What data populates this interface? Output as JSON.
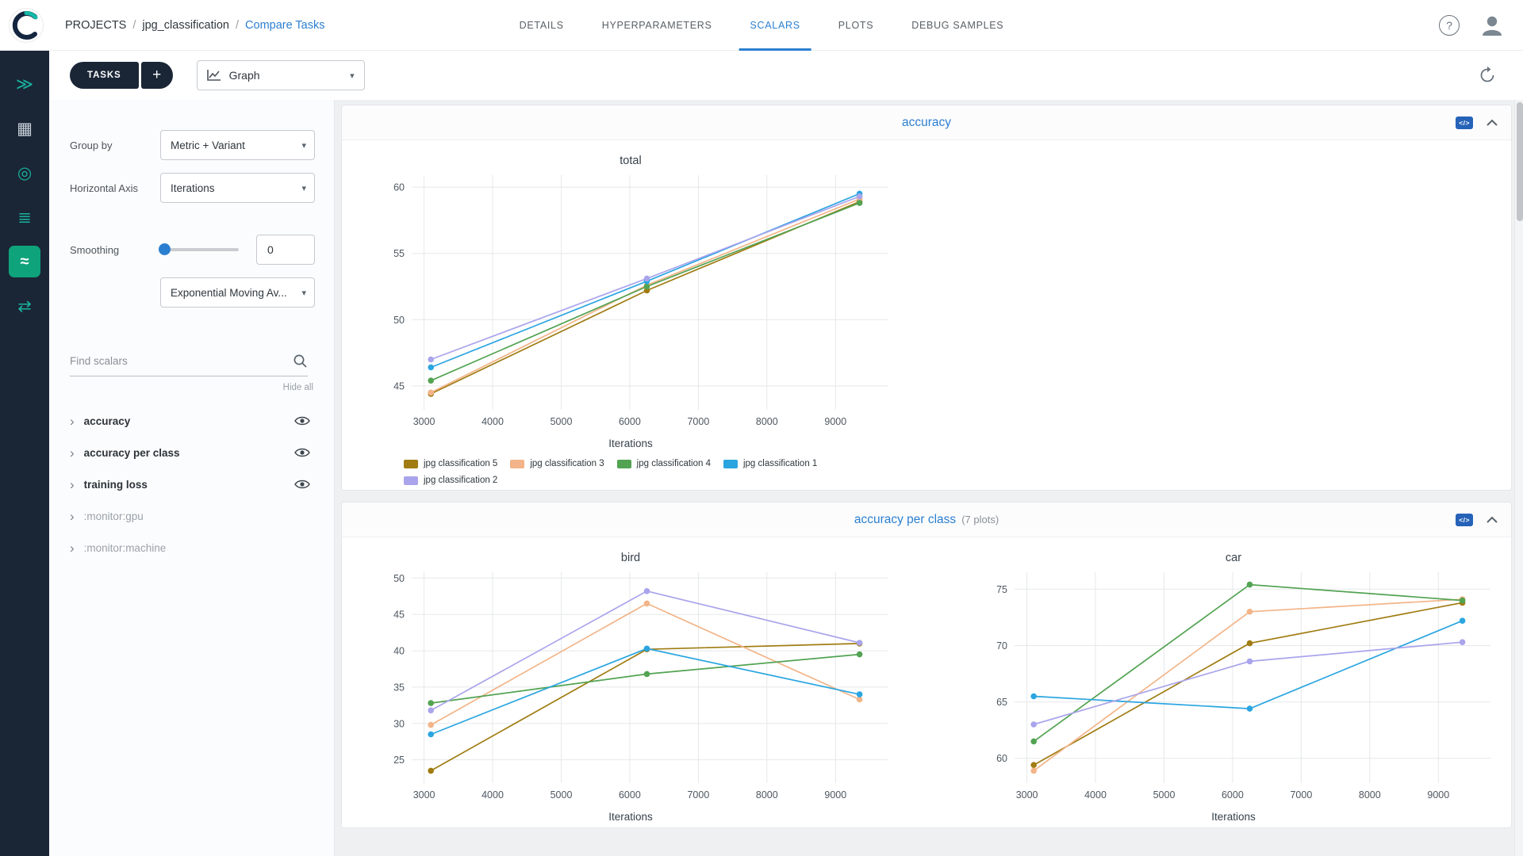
{
  "colors": {
    "accent": "#2b7fd0",
    "rail_bg": "#1a2636",
    "rail_active_bg": "#0fa37b",
    "content_bg": "#eef0f2"
  },
  "header": {
    "breadcrumb": {
      "projects": "PROJECTS",
      "sep": "/",
      "project": "jpg_classification",
      "page": "Compare Tasks"
    },
    "tabs": [
      {
        "label": "DETAILS",
        "active": false
      },
      {
        "label": "HYPERPARAMETERS",
        "active": false
      },
      {
        "label": "SCALARS",
        "active": true
      },
      {
        "label": "PLOTS",
        "active": false
      },
      {
        "label": "DEBUG SAMPLES",
        "active": false
      }
    ],
    "help_glyph": "?"
  },
  "rail": {
    "items": [
      {
        "name": "nav-getting-started-icon",
        "glyph": "≫",
        "color": "#19b39e",
        "active": false
      },
      {
        "name": "nav-projects-icon",
        "glyph": "▦",
        "color": "#c8d0d8",
        "active": false
      },
      {
        "name": "nav-datasets-icon",
        "glyph": "◎",
        "color": "#19b39e",
        "active": false
      },
      {
        "name": "nav-pipelines-icon",
        "glyph": "≣",
        "color": "#19b39e",
        "active": false
      },
      {
        "name": "nav-scalars-icon",
        "glyph": "≈",
        "color": "#ffffff",
        "active": true
      },
      {
        "name": "nav-workers-icon",
        "glyph": "⇄",
        "color": "#19b39e",
        "active": false
      }
    ]
  },
  "toolbar": {
    "tasks_label": "TASKS",
    "add_label": "+",
    "view_label": "Graph"
  },
  "controls": {
    "group_by_label": "Group by",
    "group_by_value": "Metric + Variant",
    "horizontal_axis_label": "Horizontal Axis",
    "horizontal_axis_value": "Iterations",
    "smoothing_label": "Smoothing",
    "smoothing_value": "0",
    "smoothing_type_value": "Exponential Moving Av...",
    "find_placeholder": "Find scalars",
    "hide_all": "Hide all",
    "scalar_groups": [
      {
        "label": "accuracy",
        "enabled": true
      },
      {
        "label": "accuracy per class",
        "enabled": true
      },
      {
        "label": "training loss",
        "enabled": true
      },
      {
        "label": ":monitor:gpu",
        "enabled": false
      },
      {
        "label": ":monitor:machine",
        "enabled": false
      }
    ]
  },
  "panels": [
    {
      "title": "accuracy",
      "subtitle": "",
      "charts": [
        0
      ]
    },
    {
      "title": "accuracy per class",
      "subtitle": "(7 plots)",
      "charts": [
        1,
        2
      ]
    }
  ],
  "chart_data": [
    {
      "type": "line",
      "title": "total",
      "xlabel": "Iterations",
      "legend": true,
      "legend_position": "bottom",
      "grid": true,
      "x": [
        3100,
        6250,
        9350
      ],
      "xticks": [
        3000,
        4000,
        5000,
        6000,
        7000,
        8000,
        9000
      ],
      "xlim": [
        2820,
        9760
      ],
      "yticks": [
        45,
        50,
        55,
        60
      ],
      "ylim": [
        43.2,
        60.9
      ],
      "series": [
        {
          "name": "jpg classification 5",
          "color": "#a07c12",
          "values": [
            44.4,
            52.2,
            58.9
          ]
        },
        {
          "name": "jpg classification 3",
          "color": "#f2b488",
          "values": [
            44.5,
            52.6,
            59.1
          ]
        },
        {
          "name": "jpg classification 4",
          "color": "#52a352",
          "values": [
            45.4,
            52.5,
            58.8
          ]
        },
        {
          "name": "jpg classification 1",
          "color": "#2aa5e0",
          "values": [
            46.4,
            52.9,
            59.5
          ]
        },
        {
          "name": "jpg classification 2",
          "color": "#aaa4ec",
          "values": [
            47.0,
            53.1,
            59.3
          ]
        }
      ]
    },
    {
      "type": "line",
      "title": "bird",
      "xlabel": "Iterations",
      "legend": false,
      "grid": true,
      "x": [
        3100,
        6250,
        9350
      ],
      "xticks": [
        3000,
        4000,
        5000,
        6000,
        7000,
        8000,
        9000
      ],
      "xlim": [
        2820,
        9760
      ],
      "yticks": [
        25,
        30,
        35,
        40,
        45,
        50
      ],
      "ylim": [
        21.8,
        50.8
      ],
      "series": [
        {
          "name": "jpg classification 5",
          "color": "#a07c12",
          "values": [
            23.5,
            40.2,
            41.0
          ]
        },
        {
          "name": "jpg classification 3",
          "color": "#f2b488",
          "values": [
            29.8,
            46.5,
            33.3
          ]
        },
        {
          "name": "jpg classification 4",
          "color": "#52a352",
          "values": [
            32.8,
            36.8,
            39.5
          ]
        },
        {
          "name": "jpg classification 1",
          "color": "#2aa5e0",
          "values": [
            28.5,
            40.3,
            34.0
          ]
        },
        {
          "name": "jpg classification 2",
          "color": "#aaa4ec",
          "values": [
            31.8,
            48.2,
            41.1
          ]
        }
      ]
    },
    {
      "type": "line",
      "title": "car",
      "xlabel": "Iterations",
      "legend": false,
      "grid": true,
      "x": [
        3100,
        6250,
        9350
      ],
      "xticks": [
        3000,
        4000,
        5000,
        6000,
        7000,
        8000,
        9000
      ],
      "xlim": [
        2820,
        9760
      ],
      "yticks": [
        60,
        65,
        70,
        75
      ],
      "ylim": [
        57.8,
        76.5
      ],
      "series": [
        {
          "name": "jpg classification 5",
          "color": "#a07c12",
          "values": [
            59.4,
            70.2,
            73.8
          ]
        },
        {
          "name": "jpg classification 3",
          "color": "#f2b488",
          "values": [
            58.9,
            73.0,
            74.1
          ]
        },
        {
          "name": "jpg classification 4",
          "color": "#52a352",
          "values": [
            61.5,
            75.4,
            74.0
          ]
        },
        {
          "name": "jpg classification 1",
          "color": "#2aa5e0",
          "values": [
            65.5,
            64.4,
            72.2
          ]
        },
        {
          "name": "jpg classification 2",
          "color": "#aaa4ec",
          "values": [
            63.0,
            68.6,
            70.3
          ]
        }
      ]
    }
  ]
}
